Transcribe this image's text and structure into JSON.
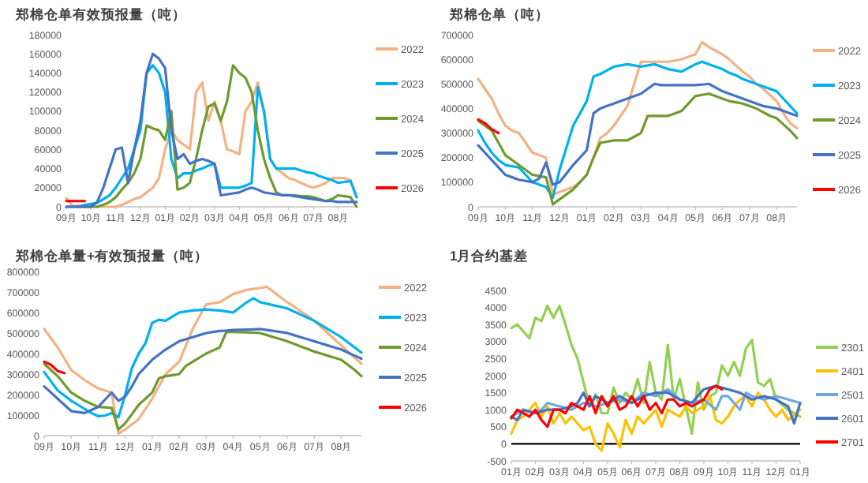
{
  "chart_data": [
    {
      "type": "line",
      "title": "郑棉仓单有效预报量（吨）",
      "categories": [
        "09月",
        null,
        null,
        null,
        "10月",
        null,
        null,
        null,
        "11月",
        null,
        null,
        null,
        "12月",
        null,
        null,
        null,
        "01月",
        null,
        null,
        null,
        "02月",
        null,
        null,
        null,
        "03月",
        null,
        null,
        null,
        "04月",
        null,
        null,
        null,
        "05月",
        null,
        null,
        null,
        "06月",
        null,
        null,
        null,
        "07月",
        null,
        null,
        null,
        "08月",
        null,
        null,
        null
      ],
      "ylim": [
        0,
        180000
      ],
      "yticks": [
        0,
        20000,
        40000,
        60000,
        80000,
        100000,
        120000,
        140000,
        160000,
        180000
      ],
      "grid": false,
      "legend": "right",
      "series": [
        {
          "name": "2022",
          "color": "#f4b183",
          "values": [
            9000,
            1000,
            1000,
            0,
            0,
            0,
            0,
            0,
            0,
            2000,
            5000,
            8000,
            10000,
            15000,
            20000,
            30000,
            60000,
            80000,
            70000,
            65000,
            60000,
            120000,
            130000,
            90000,
            110000,
            90000,
            60000,
            58000,
            55000,
            100000,
            110000,
            130000,
            100000,
            50000,
            40000,
            35000,
            30000,
            28000,
            25000,
            22000,
            20000,
            22000,
            25000,
            30000,
            30000,
            30000,
            28000,
            10000
          ]
        },
        {
          "name": "2023",
          "color": "#00b0f0",
          "values": [
            0,
            0,
            0,
            2000,
            3000,
            4000,
            8000,
            12000,
            20000,
            30000,
            40000,
            60000,
            80000,
            140000,
            148000,
            140000,
            120000,
            50000,
            30000,
            35000,
            35000,
            38000,
            40000,
            43000,
            45000,
            20000,
            20000,
            20000,
            20000,
            22000,
            25000,
            125000,
            100000,
            50000,
            40000,
            40000,
            40000,
            40000,
            38000,
            36000,
            35000,
            32000,
            30000,
            28000,
            25000,
            26000,
            27000,
            10000
          ]
        },
        {
          "name": "2024",
          "color": "#6f9a2e",
          "values": [
            null,
            null,
            0,
            0,
            0,
            0,
            2000,
            5000,
            10000,
            18000,
            25000,
            35000,
            50000,
            85000,
            82000,
            80000,
            70000,
            100000,
            18000,
            20000,
            25000,
            50000,
            80000,
            105000,
            108000,
            90000,
            110000,
            148000,
            140000,
            135000,
            120000,
            80000,
            50000,
            30000,
            15000,
            12000,
            12000,
            12000,
            11000,
            11000,
            10000,
            8000,
            6000,
            8000,
            12000,
            11000,
            10000,
            0
          ]
        },
        {
          "name": "2025",
          "color": "#4472c4",
          "values": [
            0,
            0,
            0,
            0,
            0,
            5000,
            20000,
            40000,
            60000,
            62000,
            25000,
            60000,
            90000,
            140000,
            160000,
            155000,
            145000,
            80000,
            50000,
            55000,
            45000,
            48000,
            50000,
            48000,
            45000,
            12000,
            13000,
            14000,
            15000,
            18000,
            20000,
            18000,
            15000,
            14000,
            13000,
            12000,
            12000,
            11000,
            10000,
            9000,
            8000,
            7000,
            6000,
            6000,
            5000,
            5000,
            5000,
            5000
          ]
        },
        {
          "name": "2026",
          "color": "#ff0000",
          "values": [
            6000,
            6000,
            6000,
            6000,
            null,
            null,
            null,
            null,
            null,
            null,
            null,
            null,
            null,
            null,
            null,
            null,
            null,
            null,
            null,
            null,
            null,
            null,
            null,
            null,
            null,
            null,
            null,
            null,
            null,
            null,
            null,
            null,
            null,
            null,
            null,
            null,
            null,
            null,
            null,
            null,
            null,
            null,
            null,
            null,
            null,
            null,
            null,
            null
          ]
        }
      ]
    },
    {
      "type": "line",
      "title": "郑棉仓单（吨）",
      "categories": [
        "09月",
        null,
        null,
        null,
        "10月",
        null,
        null,
        null,
        "11月",
        null,
        null,
        null,
        "12月",
        null,
        null,
        null,
        "01月",
        null,
        null,
        null,
        "02月",
        null,
        null,
        null,
        "03月",
        null,
        null,
        null,
        "04月",
        null,
        null,
        null,
        "05月",
        null,
        null,
        null,
        "06月",
        null,
        null,
        null,
        "07月",
        null,
        null,
        null,
        "08月",
        null,
        null,
        null
      ],
      "ylim": [
        0,
        700000
      ],
      "yticks": [
        0,
        100000,
        200000,
        300000,
        400000,
        500000,
        600000,
        700000
      ],
      "grid": false,
      "legend": "right",
      "series": [
        {
          "name": "2022",
          "color": "#f4b183",
          "values": [
            520000,
            480000,
            440000,
            380000,
            330000,
            310000,
            300000,
            260000,
            220000,
            210000,
            200000,
            50000,
            60000,
            70000,
            80000,
            100000,
            130000,
            200000,
            280000,
            300000,
            330000,
            370000,
            410000,
            500000,
            590000,
            590000,
            590000,
            590000,
            590000,
            595000,
            600000,
            610000,
            620000,
            670000,
            650000,
            635000,
            620000,
            600000,
            575000,
            550000,
            530000,
            500000,
            480000,
            455000,
            430000,
            380000,
            340000,
            320000
          ]
        },
        {
          "name": "2023",
          "color": "#00b0f0",
          "values": [
            310000,
            260000,
            220000,
            190000,
            170000,
            165000,
            160000,
            130000,
            100000,
            90000,
            80000,
            37000,
            150000,
            240000,
            330000,
            380000,
            430000,
            530000,
            540000,
            555000,
            570000,
            575000,
            580000,
            575000,
            570000,
            575000,
            580000,
            570000,
            560000,
            555000,
            550000,
            565000,
            580000,
            590000,
            580000,
            570000,
            560000,
            545000,
            535000,
            520000,
            510000,
            500000,
            490000,
            480000,
            470000,
            440000,
            410000,
            380000
          ]
        },
        {
          "name": "2024",
          "color": "#6f9a2e",
          "values": [
            350000,
            330000,
            310000,
            260000,
            210000,
            190000,
            170000,
            150000,
            130000,
            125000,
            120000,
            10000,
            30000,
            50000,
            70000,
            100000,
            130000,
            200000,
            260000,
            265000,
            270000,
            270000,
            270000,
            285000,
            300000,
            370000,
            370000,
            370000,
            370000,
            380000,
            390000,
            420000,
            450000,
            455000,
            460000,
            450000,
            440000,
            430000,
            425000,
            420000,
            410000,
            400000,
            385000,
            370000,
            360000,
            335000,
            310000,
            280000
          ]
        },
        {
          "name": "2025",
          "color": "#4472c4",
          "values": [
            250000,
            220000,
            190000,
            160000,
            130000,
            120000,
            110000,
            105000,
            100000,
            115000,
            180000,
            90000,
            100000,
            135000,
            170000,
            200000,
            230000,
            380000,
            400000,
            410000,
            420000,
            430000,
            440000,
            450000,
            460000,
            480000,
            500000,
            495000,
            495000,
            495000,
            495000,
            495000,
            495000,
            497000,
            500000,
            485000,
            470000,
            460000,
            450000,
            440000,
            430000,
            420000,
            410000,
            405000,
            400000,
            390000,
            380000,
            370000
          ]
        },
        {
          "name": "2026",
          "color": "#ff0000",
          "values": [
            355000,
            340000,
            315000,
            300000,
            null,
            null,
            null,
            null,
            null,
            null,
            null,
            null,
            null,
            null,
            null,
            null,
            null,
            null,
            null,
            null,
            null,
            null,
            null,
            null,
            null,
            null,
            null,
            null,
            null,
            null,
            null,
            null,
            null,
            null,
            null,
            null,
            null,
            null,
            null,
            null,
            null,
            null,
            null,
            null,
            null,
            null,
            null,
            null
          ]
        }
      ]
    },
    {
      "type": "line",
      "title": "郑棉仓单量+有效预报量（吨）",
      "categories": [
        "09月",
        null,
        null,
        null,
        "10月",
        null,
        null,
        null,
        "11月",
        null,
        null,
        null,
        "12月",
        null,
        null,
        null,
        "01月",
        null,
        null,
        null,
        "02月",
        null,
        null,
        null,
        "03月",
        null,
        null,
        null,
        "04月",
        null,
        null,
        null,
        "05月",
        null,
        null,
        null,
        "06月",
        null,
        null,
        null,
        "07月",
        null,
        null,
        null,
        "08月",
        null,
        null,
        null
      ],
      "ylim": [
        0,
        800000
      ],
      "yticks": [
        0,
        100000,
        200000,
        300000,
        400000,
        500000,
        600000,
        700000,
        800000
      ],
      "grid": false,
      "legend": "right",
      "series": [
        {
          "name": "2022",
          "color": "#f4b183",
          "values": [
            520000,
            475000,
            430000,
            375000,
            320000,
            295000,
            270000,
            250000,
            230000,
            220000,
            210000,
            10000,
            30000,
            55000,
            80000,
            130000,
            180000,
            240000,
            300000,
            330000,
            360000,
            440000,
            520000,
            580000,
            640000,
            645000,
            650000,
            670000,
            690000,
            700000,
            710000,
            715000,
            720000,
            725000,
            700000,
            675000,
            650000,
            630000,
            605000,
            585000,
            560000,
            530000,
            500000,
            470000,
            440000,
            410000,
            380000,
            350000
          ]
        },
        {
          "name": "2023",
          "color": "#00b0f0",
          "values": [
            310000,
            265000,
            220000,
            195000,
            170000,
            150000,
            130000,
            110000,
            95000,
            98000,
            110000,
            90000,
            200000,
            330000,
            400000,
            450000,
            550000,
            565000,
            560000,
            580000,
            600000,
            605000,
            610000,
            612000,
            615000,
            612000,
            610000,
            605000,
            600000,
            625000,
            650000,
            670000,
            650000,
            643000,
            635000,
            628000,
            620000,
            605000,
            590000,
            575000,
            560000,
            540000,
            520000,
            500000,
            480000,
            455000,
            430000,
            405000
          ]
        },
        {
          "name": "2024",
          "color": "#6f9a2e",
          "values": [
            350000,
            320000,
            290000,
            250000,
            210000,
            190000,
            170000,
            155000,
            140000,
            138000,
            135000,
            30000,
            60000,
            105000,
            150000,
            180000,
            210000,
            280000,
            290000,
            295000,
            300000,
            340000,
            360000,
            380000,
            400000,
            415000,
            430000,
            505000,
            505000,
            504000,
            503000,
            502000,
            500000,
            490000,
            480000,
            470000,
            460000,
            448000,
            435000,
            423000,
            410000,
            400000,
            390000,
            380000,
            370000,
            345000,
            320000,
            290000
          ]
        },
        {
          "name": "2025",
          "color": "#4472c4",
          "values": [
            240000,
            210000,
            180000,
            150000,
            120000,
            115000,
            110000,
            125000,
            140000,
            175000,
            210000,
            170000,
            190000,
            240000,
            300000,
            335000,
            370000,
            395000,
            420000,
            440000,
            460000,
            470000,
            480000,
            490000,
            500000,
            505000,
            510000,
            512000,
            515000,
            516000,
            517000,
            518000,
            520000,
            515000,
            510000,
            505000,
            500000,
            490000,
            480000,
            470000,
            460000,
            450000,
            440000,
            430000,
            420000,
            405000,
            390000,
            375000
          ]
        },
        {
          "name": "2026",
          "color": "#ff0000",
          "values": [
            360000,
            345000,
            315000,
            305000,
            null,
            null,
            null,
            null,
            null,
            null,
            null,
            null,
            null,
            null,
            null,
            null,
            null,
            null,
            null,
            null,
            null,
            null,
            null,
            null,
            null,
            null,
            null,
            null,
            null,
            null,
            null,
            null,
            null,
            null,
            null,
            null,
            null,
            null,
            null,
            null,
            null,
            null,
            null,
            null,
            null,
            null,
            null,
            null
          ]
        }
      ]
    },
    {
      "type": "line",
      "title": "1月合约基差",
      "categories": [
        "01月",
        null,
        null,
        null,
        "02月",
        null,
        null,
        null,
        "03月",
        null,
        null,
        null,
        "04月",
        null,
        null,
        null,
        "05月",
        null,
        null,
        null,
        "06月",
        null,
        null,
        null,
        "07月",
        null,
        null,
        null,
        "08月",
        null,
        null,
        null,
        "09月",
        null,
        null,
        null,
        "10月",
        null,
        null,
        null,
        "11月",
        null,
        null,
        null,
        "12月",
        null,
        null,
        null,
        "01月"
      ],
      "ylim": [
        -500,
        4500
      ],
      "yticks": [
        {
          "value": -500,
          "label": "-500"
        },
        0,
        500,
        1000,
        1500,
        2000,
        2500,
        3000,
        3500,
        4000,
        4500
      ],
      "grid": false,
      "legend": "right",
      "ref_lines": [
        {
          "axis": "y",
          "value": 0,
          "color": "#000000"
        }
      ],
      "series": [
        {
          "name": "2301",
          "color": "#92d050",
          "values": [
            3400,
            3500,
            3300,
            3100,
            3700,
            3600,
            4050,
            3700,
            4050,
            3500,
            2900,
            2500,
            1800,
            1100,
            1450,
            900,
            900,
            1650,
            1200,
            1500,
            1300,
            1900,
            1200,
            2400,
            1500,
            1300,
            2900,
            1300,
            1900,
            1100,
            300,
            1800,
            1000,
            1400,
            1500,
            2300,
            2000,
            2400,
            2000,
            2800,
            3050,
            1800,
            1700,
            1900,
            1300,
            1150,
            1000,
            900,
            800
          ]
        },
        {
          "name": "2401",
          "color": "#ffc000",
          "values": [
            300,
            700,
            800,
            1000,
            1200,
            800,
            1100,
            600,
            900,
            600,
            800,
            600,
            400,
            500,
            0,
            -200,
            600,
            300,
            -100,
            700,
            300,
            800,
            600,
            800,
            1000,
            500,
            1000,
            900,
            800,
            1100,
            900,
            1000,
            1100,
            1400,
            700,
            600,
            800,
            1100,
            1300,
            1400,
            1100,
            1500,
            1300,
            1000,
            800,
            1000,
            700,
            850,
            1000
          ]
        },
        {
          "name": "2501",
          "color": "#6fa8dc",
          "values": [
            800,
            900,
            1000,
            950,
            900,
            1000,
            1200,
            1150,
            1100,
            1050,
            1000,
            1100,
            1200,
            1150,
            1100,
            1150,
            1200,
            1250,
            1300,
            1250,
            1200,
            1350,
            1500,
            1450,
            1400,
            1500,
            1600,
            1450,
            1300,
            1250,
            1200,
            1250,
            1300,
            1150,
            1000,
            1400,
            1400,
            1200,
            1000,
            1500,
            1400,
            1350,
            1300,
            1350,
            1400,
            1350,
            1300,
            1250,
            1200
          ]
        },
        {
          "name": "2601",
          "color": "#4472c4",
          "values": [
            800,
            700,
            1000,
            950,
            900,
            950,
            1000,
            1000,
            1000,
            1050,
            1100,
            1200,
            1500,
            1100,
            1400,
            1300,
            1200,
            1300,
            1400,
            1300,
            1200,
            1300,
            1400,
            1450,
            1500,
            1500,
            1500,
            1400,
            1300,
            1250,
            1200,
            1400,
            1600,
            1650,
            1700,
            1650,
            1600,
            1550,
            1500,
            1400,
            1300,
            1350,
            1400,
            1350,
            1300,
            1200,
            1100,
            600,
            1200
          ]
        },
        {
          "name": "2701",
          "color": "#ff0000",
          "values": [
            750,
            1000,
            900,
            800,
            1000,
            700,
            500,
            1000,
            1000,
            900,
            1200,
            1100,
            1000,
            1400,
            900,
            1400,
            1100,
            1400,
            1000,
            1100,
            1400,
            1100,
            1400,
            1000,
            1200,
            900,
            1300,
            1300,
            1100,
            1200,
            1100,
            1200,
            1300,
            1600,
            1700,
            1600,
            null,
            null,
            null,
            null,
            null,
            null,
            null,
            null,
            null,
            null,
            null,
            null,
            null
          ]
        }
      ]
    }
  ]
}
